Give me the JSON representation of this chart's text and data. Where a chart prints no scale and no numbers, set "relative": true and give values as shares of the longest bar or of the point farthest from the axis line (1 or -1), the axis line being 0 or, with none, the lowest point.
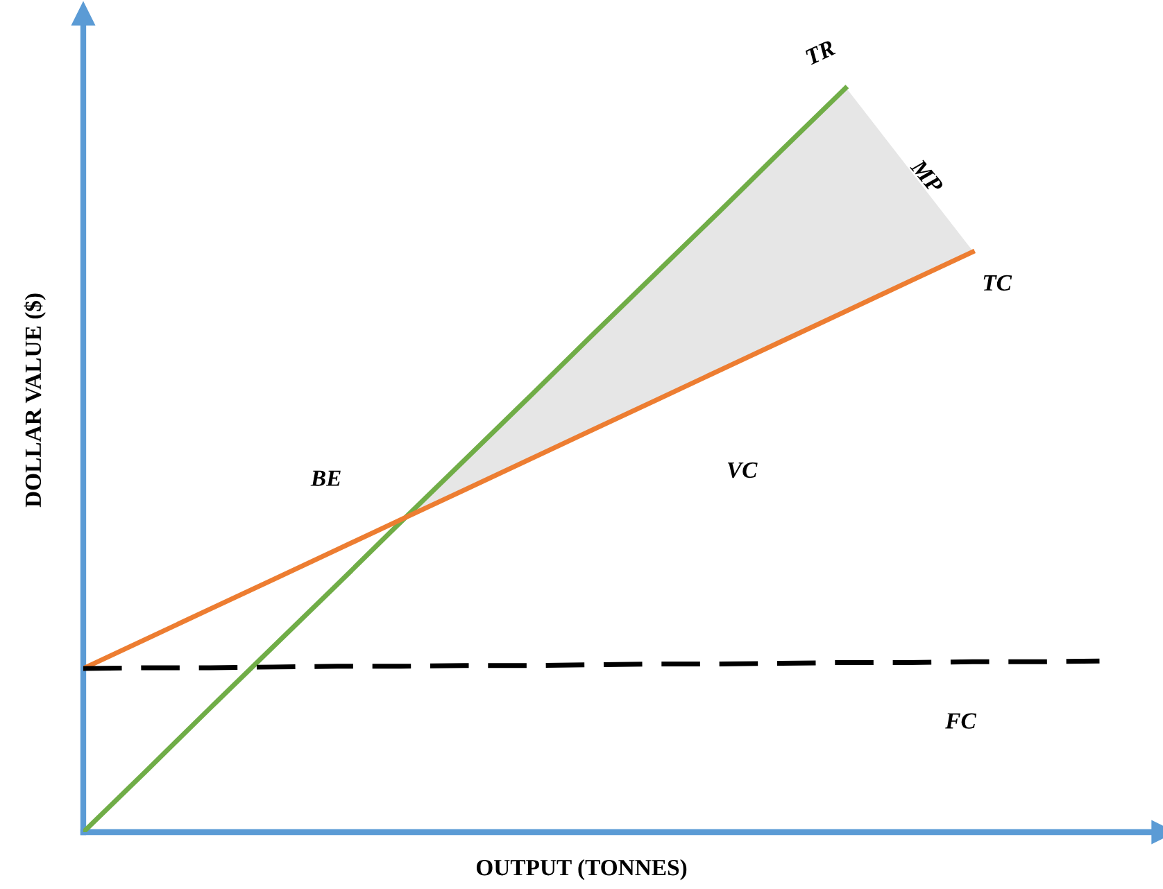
{
  "chart_data": {
    "type": "line",
    "relative": true,
    "xlabel": "OUTPUT (TONNES)",
    "ylabel": "DOLLAR VALUE ($)",
    "categories": [
      null,
      null,
      null,
      null,
      null,
      null,
      null,
      null,
      null,
      null,
      null,
      null,
      null,
      null,
      null,
      null,
      null
    ],
    "series": [
      {
        "name": "TR",
        "color": "#70ad47",
        "values": [
          0,
          0.083,
          0.167,
          0.25,
          0.333,
          0.417,
          0.5,
          0.583,
          0.667,
          0.75,
          0.833,
          0.917,
          1,
          null,
          null,
          null,
          null
        ]
      },
      {
        "name": "TC",
        "color": "#ed7d31",
        "values": [
          0.22,
          0.26,
          0.3,
          0.34,
          0.38,
          0.42,
          0.46,
          0.5,
          0.54,
          0.58,
          0.62,
          0.66,
          0.7,
          0.74,
          0.78,
          null,
          null
        ],
        "lower": [
          null,
          null,
          null,
          null,
          null,
          0.42,
          0.46,
          0.5,
          0.54,
          0.58,
          0.62,
          0.66,
          0.7,
          0.74,
          0.78,
          null,
          null
        ],
        "upper": [
          null,
          null,
          null,
          null,
          null,
          0.42,
          0.5,
          0.583,
          0.667,
          0.75,
          0.833,
          0.917,
          1,
          0.89,
          0.78,
          null,
          null
        ]
      },
      {
        "name": "FC",
        "color": "#000000",
        "line_style": "dashed",
        "values": [
          0.22,
          0.221,
          0.221,
          0.222,
          0.223,
          0.223,
          0.224,
          0.224,
          0.225,
          0.226,
          0.226,
          0.227,
          0.228,
          0.228,
          0.229,
          0.229,
          0.23
        ]
      }
    ],
    "annotations": [
      "BE",
      "VC",
      "MP"
    ]
  }
}
